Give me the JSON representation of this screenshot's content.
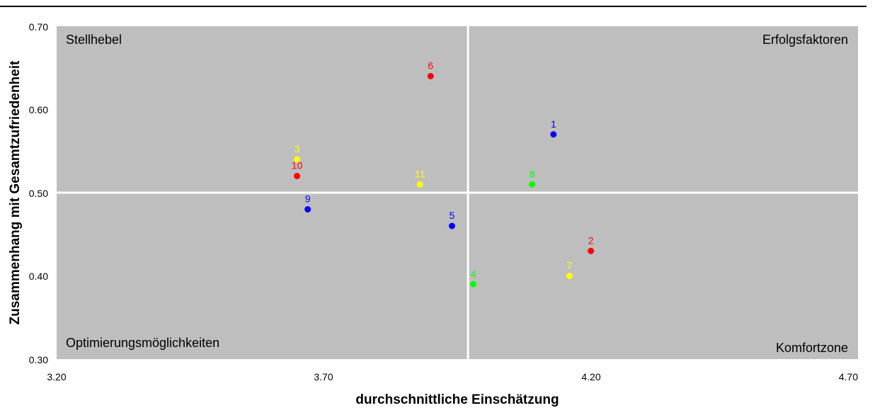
{
  "chart_data": {
    "type": "scatter",
    "xlabel": "durchschnittliche Einschätzung",
    "ylabel": "Zusammenhang mit Gesamtzufriedenheit",
    "xlim": [
      3.2,
      4.7
    ],
    "ylim": [
      0.3,
      0.7
    ],
    "x_ticks": [
      "3.20",
      "3.70",
      "4.20",
      "4.70"
    ],
    "y_ticks": [
      "0.30",
      "0.40",
      "0.50",
      "0.60",
      "0.70"
    ],
    "divider": {
      "x": 3.97,
      "y": 0.5
    },
    "quadrant_labels": {
      "top_left": "Stellhebel",
      "top_right": "Erfolgsfaktoren",
      "bottom_left": "Optimierungsmöglichkeiten",
      "bottom_right": "Komfortzone"
    },
    "grid": false,
    "plot_background": "#bebebe",
    "divider_color": "#ffffff",
    "points": [
      {
        "label": "1",
        "x": 4.13,
        "y": 0.57,
        "color": "#0000ff"
      },
      {
        "label": "2",
        "x": 4.2,
        "y": 0.43,
        "color": "#ff0000"
      },
      {
        "label": "3",
        "x": 3.65,
        "y": 0.54,
        "color": "#ffff00"
      },
      {
        "label": "4",
        "x": 3.98,
        "y": 0.39,
        "color": "#00ff00"
      },
      {
        "label": "5",
        "x": 3.94,
        "y": 0.46,
        "color": "#0000ff"
      },
      {
        "label": "6",
        "x": 3.9,
        "y": 0.64,
        "color": "#ff0000"
      },
      {
        "label": "7",
        "x": 4.16,
        "y": 0.4,
        "color": "#ffff00"
      },
      {
        "label": "8",
        "x": 4.09,
        "y": 0.51,
        "color": "#00ff00"
      },
      {
        "label": "9",
        "x": 3.67,
        "y": 0.48,
        "color": "#0000ff"
      },
      {
        "label": "10",
        "x": 3.65,
        "y": 0.52,
        "color": "#ff0000"
      },
      {
        "label": "11",
        "x": 3.88,
        "y": 0.51,
        "color": "#ffff00"
      }
    ]
  }
}
